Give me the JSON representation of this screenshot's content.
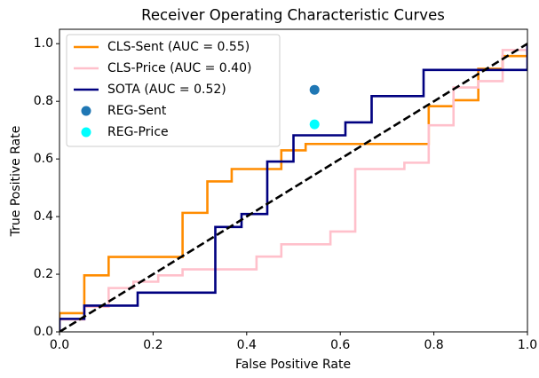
{
  "chart_data": {
    "type": "line",
    "title": "Receiver Operating Characteristic Curves",
    "xlabel": "False Positive Rate",
    "ylabel": "True Positive Rate",
    "xlim": [
      0,
      1
    ],
    "ylim": [
      0,
      1.05
    ],
    "xticks": [
      {
        "value": 0,
        "label": "0.0"
      },
      {
        "value": 0.2,
        "label": "0.2"
      },
      {
        "value": 0.4,
        "label": "0.4"
      },
      {
        "value": 0.6,
        "label": "0.6"
      },
      {
        "value": 0.8,
        "label": "0.8"
      },
      {
        "value": 1,
        "label": "1.0"
      }
    ],
    "yticks": [
      {
        "value": 0,
        "label": "0.0"
      },
      {
        "value": 0.2,
        "label": "0.2"
      },
      {
        "value": 0.4,
        "label": "0.4"
      },
      {
        "value": 0.6,
        "label": "0.6"
      },
      {
        "value": 0.8,
        "label": "0.8"
      },
      {
        "value": 1,
        "label": "1.0"
      }
    ],
    "legend": "upper left",
    "series": [
      {
        "name": "CLS-Sent (AUC = 0.55)",
        "type": "line",
        "color": "#ff8c00",
        "x": [
          0,
          0,
          0.053,
          0.053,
          0.105,
          0.105,
          0.263,
          0.263,
          0.316,
          0.316,
          0.368,
          0.368,
          0.474,
          0.474,
          0.526,
          0.526,
          0.789,
          0.789,
          0.842,
          0.842,
          0.895,
          0.895,
          0.947,
          0.947,
          1,
          1
        ],
        "values": [
          0,
          0.065,
          0.065,
          0.196,
          0.196,
          0.26,
          0.26,
          0.413,
          0.413,
          0.522,
          0.522,
          0.565,
          0.565,
          0.63,
          0.63,
          0.652,
          0.652,
          0.783,
          0.783,
          0.804,
          0.804,
          0.913,
          0.913,
          0.957,
          0.957,
          1
        ]
      },
      {
        "name": "CLS-Price (AUC = 0.40)",
        "type": "line",
        "color": "#ffc0cb",
        "x": [
          0,
          0,
          0.053,
          0.053,
          0.105,
          0.105,
          0.158,
          0.158,
          0.211,
          0.211,
          0.263,
          0.263,
          0.421,
          0.421,
          0.474,
          0.474,
          0.579,
          0.579,
          0.632,
          0.632,
          0.737,
          0.737,
          0.789,
          0.789,
          0.842,
          0.842,
          0.895,
          0.895,
          0.947,
          0.947,
          1,
          1
        ],
        "values": [
          0,
          0.043,
          0.043,
          0.087,
          0.087,
          0.152,
          0.152,
          0.174,
          0.174,
          0.196,
          0.196,
          0.217,
          0.217,
          0.261,
          0.261,
          0.304,
          0.304,
          0.348,
          0.348,
          0.565,
          0.565,
          0.587,
          0.587,
          0.717,
          0.717,
          0.848,
          0.848,
          0.87,
          0.87,
          0.978,
          0.978,
          1
        ]
      },
      {
        "name": "SOTA (AUC = 0.52)",
        "type": "line",
        "color": "#000080",
        "x": [
          0,
          0,
          0.053,
          0.053,
          0.167,
          0.167,
          0.333,
          0.333,
          0.389,
          0.389,
          0.444,
          0.444,
          0.5,
          0.5,
          0.611,
          0.611,
          0.667,
          0.667,
          0.778,
          0.778,
          1,
          1
        ],
        "values": [
          0,
          0.045,
          0.045,
          0.091,
          0.091,
          0.136,
          0.136,
          0.364,
          0.364,
          0.409,
          0.409,
          0.591,
          0.591,
          0.682,
          0.682,
          0.727,
          0.727,
          0.818,
          0.818,
          0.909,
          0.909,
          1
        ]
      },
      {
        "name": "REG-Sent",
        "type": "scatter",
        "color": "#1f77b4",
        "x": [
          0.545
        ],
        "values": [
          0.84
        ]
      },
      {
        "name": "REG-Price",
        "type": "scatter",
        "color": "#00ffff",
        "x": [
          0.545
        ],
        "values": [
          0.72
        ]
      },
      {
        "type": "line",
        "dashed": true,
        "color": "#000000",
        "x": [
          0,
          1
        ],
        "values": [
          0,
          1
        ]
      }
    ]
  }
}
